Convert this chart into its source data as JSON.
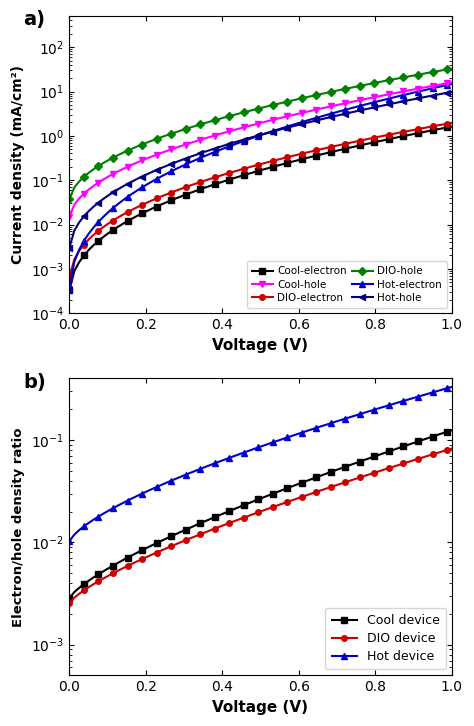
{
  "title_a": "a)",
  "title_b": "b)",
  "xlabel": "Voltage (V)",
  "ylabel_a": "Current density (mA/cm²)",
  "ylabel_b": "Electron/hole density ratio",
  "xlim": [
    0.0,
    1.0
  ],
  "ylim_a": [
    0.0001,
    500.0
  ],
  "ylim_b": [
    0.0005,
    0.4
  ],
  "xticks": [
    0.0,
    0.2,
    0.4,
    0.6,
    0.8,
    1.0
  ],
  "curves_a": [
    {
      "key": "cool_electron",
      "color": "#000000",
      "marker": "s",
      "label": "Cool-electron",
      "J0": 0.0002,
      "alpha": 9.0,
      "beta": 0.42
    },
    {
      "key": "dio_electron",
      "color": "#cc0000",
      "marker": "o",
      "label": "DIO-electron",
      "J0": 0.0004,
      "alpha": 8.5,
      "beta": 0.42
    },
    {
      "key": "hot_electron",
      "color": "#0000cc",
      "marker": "^",
      "label": "Hot-electron",
      "J0": 0.00015,
      "alpha": 11.5,
      "beta": 0.38
    },
    {
      "key": "cool_hole",
      "color": "#ff00ff",
      "marker": "v",
      "label": "Cool-hole",
      "J0": 0.012,
      "alpha": 7.2,
      "beta": 0.5
    },
    {
      "key": "dio_hole",
      "color": "#008000",
      "marker": "D",
      "label": "DIO-hole",
      "J0": 0.03,
      "alpha": 7.0,
      "beta": 0.5
    },
    {
      "key": "hot_hole",
      "color": "#000080",
      "marker": "<",
      "label": "Hot-hole",
      "J0": 0.002,
      "alpha": 8.5,
      "beta": 0.44
    }
  ],
  "curves_b": [
    {
      "key": "cool",
      "color": "#000000",
      "marker": "s",
      "label": "Cool device",
      "R0": 0.0028,
      "alpha": 3.8,
      "beta": 0.75
    },
    {
      "key": "dio",
      "color": "#cc0000",
      "marker": "o",
      "label": "DIO device",
      "R0": 0.0025,
      "alpha": 3.5,
      "beta": 0.75
    },
    {
      "key": "hot",
      "color": "#0000cc",
      "marker": "^",
      "label": "Hot device",
      "R0": 0.01,
      "alpha": 3.5,
      "beta": 0.7
    }
  ],
  "figsize": [
    4.74,
    7.26
  ],
  "dpi": 100,
  "marker_size": 4,
  "line_width": 1.5,
  "mark_every": 3
}
